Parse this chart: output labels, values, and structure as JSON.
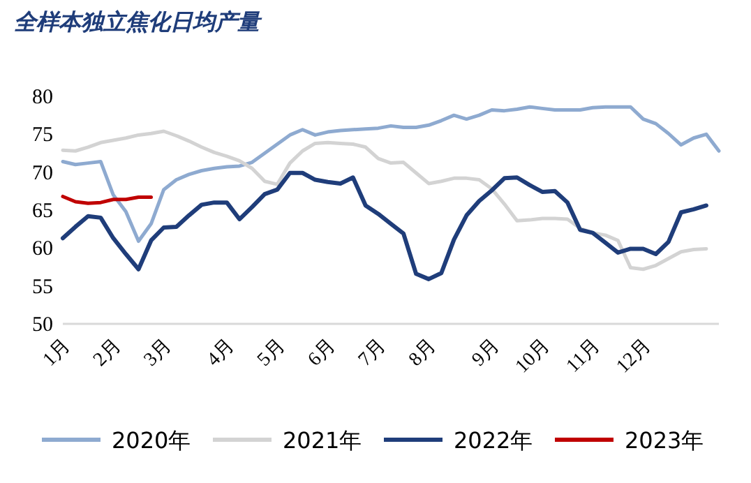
{
  "chart_data": {
    "type": "line",
    "title": "全样本独立焦化日均产量",
    "categories": [
      "1月",
      null,
      null,
      null,
      "2月",
      null,
      null,
      null,
      "3月",
      null,
      null,
      null,
      null,
      "4月",
      null,
      null,
      null,
      "5月",
      null,
      null,
      null,
      "6月",
      null,
      null,
      null,
      "7月",
      null,
      null,
      null,
      "8月",
      null,
      null,
      null,
      null,
      "9月",
      null,
      null,
      null,
      "10月",
      null,
      null,
      null,
      "11月",
      null,
      null,
      null,
      "12月",
      null,
      null,
      null,
      null,
      null,
      null
    ],
    "ylim": [
      50,
      80
    ],
    "yticks": [
      50,
      55,
      60,
      65,
      70,
      75,
      80
    ],
    "grid": false,
    "legend": "bottom",
    "marker": "none",
    "line_style": "solid",
    "series": [
      {
        "name": "2020年",
        "color": "#8eaad0",
        "values": [
          71.4,
          71.0,
          71.2,
          71.4,
          67.0,
          64.8,
          60.9,
          63.2,
          67.7,
          69.0,
          69.7,
          70.2,
          70.5,
          70.7,
          70.8,
          71.3,
          72.5,
          73.7,
          74.9,
          75.6,
          74.9,
          75.3,
          75.5,
          75.6,
          75.7,
          75.8,
          76.1,
          75.9,
          75.9,
          76.2,
          76.8,
          77.5,
          77.0,
          77.5,
          78.2,
          78.1,
          78.3,
          78.6,
          78.4,
          78.2,
          78.2,
          78.2,
          78.5,
          78.6,
          78.6,
          78.6,
          77.0,
          76.4,
          75.1,
          73.6,
          74.5,
          75.0,
          72.8
        ]
      },
      {
        "name": "2021年",
        "color": "#d3d3d3",
        "values": [
          72.9,
          72.8,
          73.3,
          73.9,
          74.2,
          74.5,
          74.9,
          75.1,
          75.4,
          74.8,
          74.1,
          73.3,
          72.6,
          72.1,
          71.5,
          70.5,
          68.8,
          68.4,
          71.2,
          72.8,
          73.8,
          73.9,
          73.8,
          73.7,
          73.3,
          71.8,
          71.2,
          71.3,
          69.9,
          68.5,
          68.8,
          69.2,
          69.2,
          69.0,
          67.8,
          65.8,
          63.6,
          63.7,
          63.9,
          63.9,
          63.8,
          62.6,
          62.0,
          61.7,
          61.0,
          57.4,
          57.2,
          57.7,
          58.6,
          59.5,
          59.8,
          59.9,
          null
        ]
      },
      {
        "name": "2022年",
        "color": "#1f3d7a",
        "values": [
          61.3,
          62.8,
          64.2,
          64.0,
          61.3,
          59.2,
          57.2,
          61.0,
          62.7,
          62.8,
          64.3,
          65.7,
          66.0,
          66.0,
          63.8,
          65.4,
          67.1,
          67.7,
          69.9,
          69.9,
          69.0,
          68.7,
          68.5,
          69.3,
          65.6,
          64.5,
          63.2,
          61.9,
          56.6,
          55.9,
          56.7,
          61.1,
          64.3,
          66.2,
          67.6,
          69.2,
          69.3,
          68.3,
          67.4,
          67.5,
          66.0,
          62.4,
          62.0,
          60.7,
          59.4,
          59.9,
          59.9,
          59.2,
          60.8,
          64.7,
          65.1,
          65.6,
          null
        ]
      },
      {
        "name": "2023年",
        "color": "#c00000",
        "values": [
          66.8,
          66.1,
          65.9,
          66.0,
          66.4,
          66.4,
          66.7,
          66.7,
          null,
          null,
          null,
          null,
          null,
          null,
          null,
          null,
          null,
          null,
          null,
          null,
          null,
          null,
          null,
          null,
          null,
          null,
          null,
          null,
          null,
          null,
          null,
          null,
          null,
          null,
          null,
          null,
          null,
          null,
          null,
          null,
          null,
          null,
          null,
          null,
          null,
          null,
          null,
          null,
          null,
          null,
          null,
          null,
          null
        ]
      }
    ]
  }
}
